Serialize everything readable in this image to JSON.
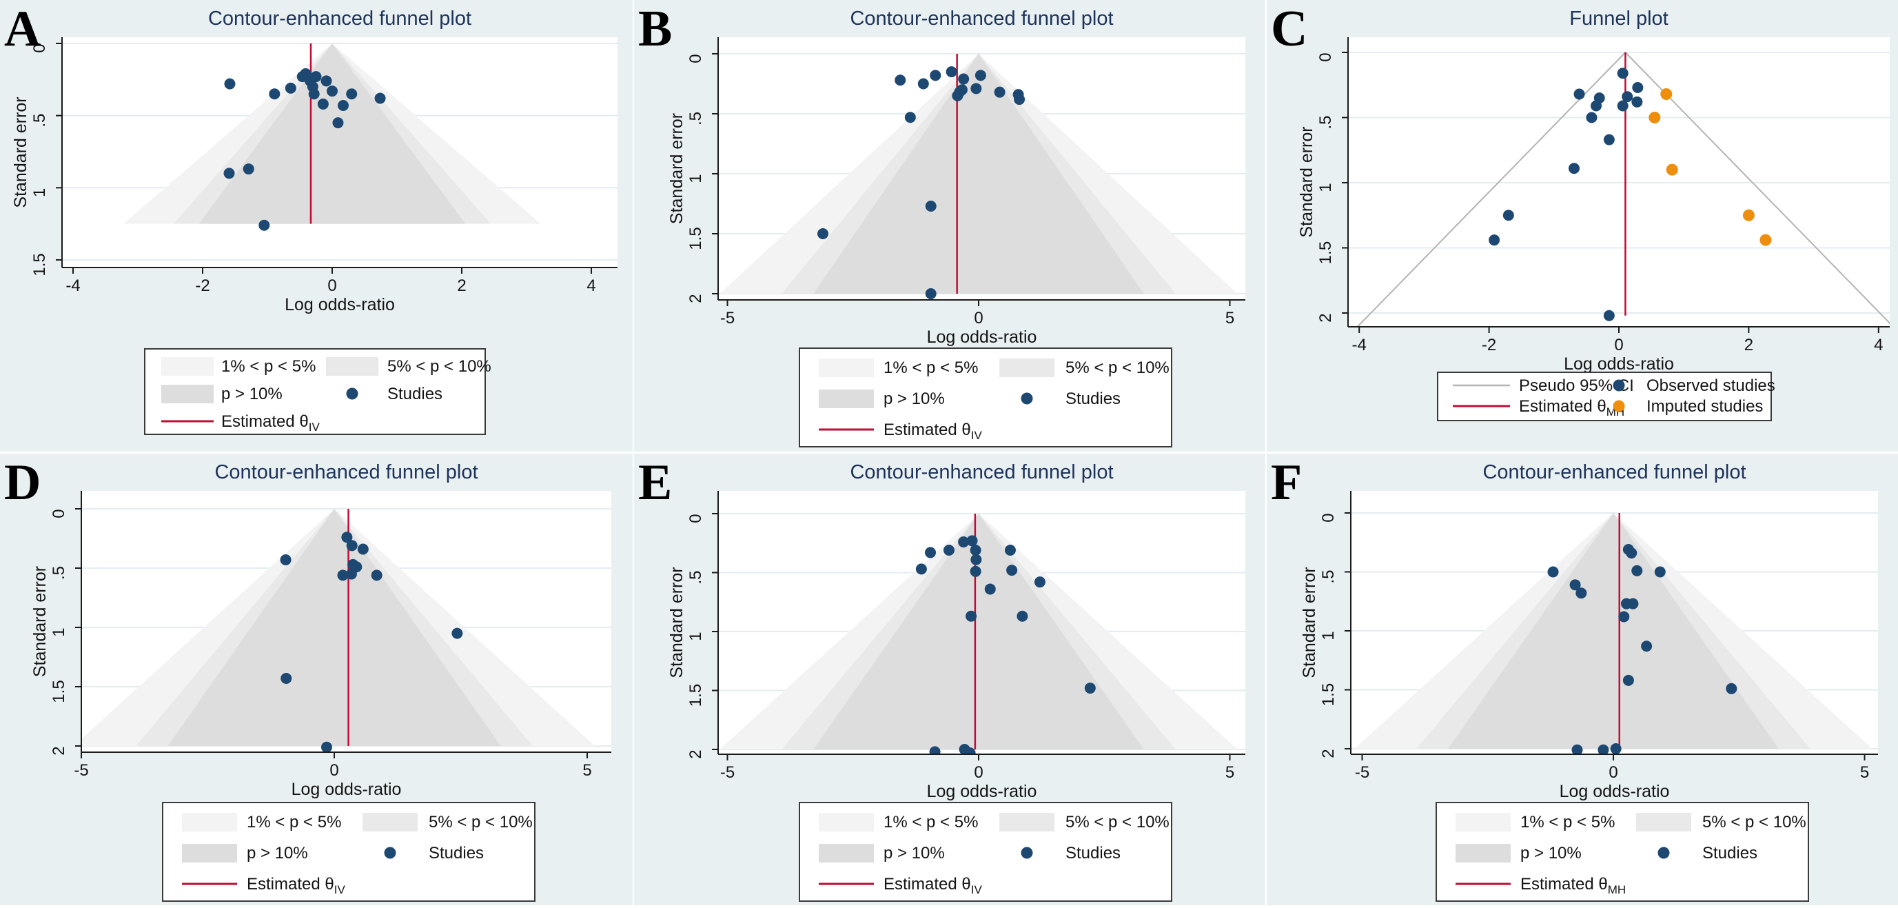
{
  "legend_labels": {
    "band_1_5": "1% < p < 5%",
    "band_5_10": "5% < p < 10%",
    "band_10": "p > 10%",
    "studies": "Studies",
    "estimated": "Estimated θ",
    "pseudo_ci": "Pseudo 95% CI",
    "observed": "Observed studies",
    "imputed": "Imputed studies"
  },
  "colors": {
    "page_background": "#e9f0f2",
    "plot_background": "#ffffff",
    "gridline": "#e3edf0",
    "band_outer_1_5": "#f3f3f3",
    "band_mid_5_10": "#e9e9e9",
    "band_inner_10": "#dddddd",
    "study_dot": "#1d4872",
    "imputed_dot": "#ef8e0c",
    "estimate_line": "#c00d35",
    "pseudo_ci_line": "#b3b3b3",
    "title_text": "#1e3359",
    "axis_text": "#141414"
  },
  "chart_data": [
    {
      "panel_label": "A",
      "type": "scatter",
      "title": "Contour-enhanced funnel plot",
      "xlabel": "Log odds-ratio",
      "ylabel": "Standard error",
      "legend_kind": "contour",
      "xtick_values": [
        -4,
        -2,
        0,
        2,
        4
      ],
      "xtick_labels": [
        "-4",
        "-2",
        "0",
        "2",
        "4"
      ],
      "ytick_values": [
        0,
        0.5,
        1,
        1.5
      ],
      "ytick_labels": [
        "0",
        ".5",
        "1",
        "1.5"
      ],
      "xlim": [
        -4.2,
        4.4
      ],
      "ylim": [
        0,
        1.55
      ],
      "funnel": {
        "center": 0,
        "bottom_se": 1.25,
        "z_p10": 1.645,
        "z_p05": 1.96,
        "z_p01": 2.576
      },
      "estimate_x": -0.33,
      "estimate_sub": "IV",
      "points": [
        [
          -1.58,
          0.28
        ],
        [
          -0.89,
          0.35
        ],
        [
          -0.64,
          0.31
        ],
        [
          -0.46,
          0.23
        ],
        [
          -0.41,
          0.21
        ],
        [
          -0.34,
          0.26
        ],
        [
          -0.3,
          0.3
        ],
        [
          -0.28,
          0.35
        ],
        [
          -0.25,
          0.23
        ],
        [
          -0.09,
          0.26
        ],
        [
          0.0,
          0.33
        ],
        [
          -0.14,
          0.42
        ],
        [
          0.17,
          0.43
        ],
        [
          0.3,
          0.35
        ],
        [
          0.74,
          0.38
        ],
        [
          0.09,
          0.55
        ],
        [
          -1.59,
          0.9
        ],
        [
          -1.29,
          0.87
        ],
        [
          -1.05,
          1.26
        ]
      ]
    },
    {
      "panel_label": "B",
      "type": "scatter",
      "title": "Contour-enhanced funnel plot",
      "xlabel": "Log odds-ratio",
      "ylabel": "Standard error",
      "legend_kind": "contour",
      "xtick_values": [
        -5,
        0,
        5
      ],
      "xtick_labels": [
        "-5",
        "0",
        "5"
      ],
      "ytick_values": [
        0,
        0.5,
        1,
        1.5,
        2
      ],
      "ytick_labels": [
        "0",
        ".5",
        "1",
        "1.5",
        "2"
      ],
      "xlim": [
        -5.2,
        5.3
      ],
      "ylim": [
        0,
        2.05
      ],
      "funnel": {
        "center": 0,
        "bottom_se": 2.0,
        "z_p10": 1.645,
        "z_p05": 1.96,
        "z_p01": 2.576
      },
      "estimate_x": -0.43,
      "estimate_sub": "IV",
      "points": [
        [
          -1.56,
          0.22
        ],
        [
          -1.1,
          0.25
        ],
        [
          -0.86,
          0.18
        ],
        [
          -0.54,
          0.15
        ],
        [
          -0.3,
          0.21
        ],
        [
          -0.33,
          0.3
        ],
        [
          -0.42,
          0.35
        ],
        [
          -0.38,
          0.32
        ],
        [
          0.04,
          0.18
        ],
        [
          -0.05,
          0.29
        ],
        [
          0.42,
          0.32
        ],
        [
          0.79,
          0.34
        ],
        [
          0.81,
          0.38
        ],
        [
          -1.36,
          0.53
        ],
        [
          -0.95,
          1.27
        ],
        [
          -3.1,
          1.5
        ],
        [
          -0.95,
          2.0
        ]
      ]
    },
    {
      "panel_label": "C",
      "type": "scatter",
      "title": "Funnel plot",
      "xlabel": "Log odds-ratio",
      "ylabel": "Standard error",
      "legend_kind": "trimfill",
      "xtick_values": [
        -4,
        -2,
        0,
        2,
        4
      ],
      "xtick_labels": [
        "-4",
        "-2",
        "0",
        "2",
        "4"
      ],
      "ytick_values": [
        0,
        0.5,
        1,
        1.5,
        2
      ],
      "ytick_labels": [
        "0",
        ".5",
        "1",
        "1.5",
        "2"
      ],
      "xlim": [
        -4.2,
        4.2
      ],
      "ylim": [
        0,
        2.1
      ],
      "pseudo_ci": {
        "center": 0.1,
        "z": 1.96
      },
      "estimate_x": 0.1,
      "estimate_sub": "MH",
      "observed": [
        [
          0.06,
          0.16
        ],
        [
          0.29,
          0.27
        ],
        [
          -0.61,
          0.32
        ],
        [
          -0.3,
          0.35
        ],
        [
          0.13,
          0.34
        ],
        [
          0.28,
          0.38
        ],
        [
          -0.35,
          0.41
        ],
        [
          0.06,
          0.41
        ],
        [
          -0.42,
          0.5
        ],
        [
          -0.15,
          0.67
        ],
        [
          -0.69,
          0.89
        ],
        [
          -1.7,
          1.25
        ],
        [
          -1.92,
          1.44
        ],
        [
          -0.15,
          2.02
        ]
      ],
      "imputed": [
        [
          0.73,
          0.32
        ],
        [
          0.55,
          0.5
        ],
        [
          0.82,
          0.9
        ],
        [
          2.0,
          1.25
        ],
        [
          2.26,
          1.44
        ]
      ]
    },
    {
      "panel_label": "D",
      "type": "scatter",
      "title": "Contour-enhanced funnel plot",
      "xlabel": "Log odds-ratio",
      "ylabel": "Standard error",
      "legend_kind": "contour",
      "xtick_values": [
        -5,
        0,
        5
      ],
      "xtick_labels": [
        "-5",
        "0",
        "5"
      ],
      "ytick_values": [
        0,
        0.5,
        1,
        1.5,
        2
      ],
      "ytick_labels": [
        "0",
        ".5",
        "1",
        "1.5",
        "2"
      ],
      "xlim": [
        -5.2,
        5.3
      ],
      "ylim": [
        0,
        2.05
      ],
      "funnel": {
        "center": 0,
        "bottom_se": 2.0,
        "z_p10": 1.645,
        "z_p05": 1.96,
        "z_p01": 2.576
      },
      "estimate_x": 0.28,
      "estimate_sub": "IV",
      "points": [
        [
          0.25,
          0.24
        ],
        [
          0.35,
          0.31
        ],
        [
          0.57,
          0.34
        ],
        [
          -0.96,
          0.43
        ],
        [
          0.37,
          0.47
        ],
        [
          0.44,
          0.49
        ],
        [
          0.17,
          0.56
        ],
        [
          0.34,
          0.55
        ],
        [
          0.84,
          0.56
        ],
        [
          2.43,
          1.05
        ],
        [
          -0.95,
          1.43
        ],
        [
          -0.15,
          2.01
        ]
      ]
    },
    {
      "panel_label": "E",
      "type": "scatter",
      "title": "Contour-enhanced funnel plot",
      "xlabel": "Log odds-ratio",
      "ylabel": "Standard error",
      "legend_kind": "contour",
      "xtick_values": [
        -5,
        0,
        5
      ],
      "xtick_labels": [
        "-5",
        "0",
        "5"
      ],
      "ytick_values": [
        0,
        0.5,
        1,
        1.5,
        2
      ],
      "ytick_labels": [
        "0",
        ".5",
        "1",
        "1.5",
        "2"
      ],
      "xlim": [
        -5.2,
        5.3
      ],
      "ylim": [
        0,
        2.05
      ],
      "funnel": {
        "center": 0,
        "bottom_se": 2.0,
        "z_p10": 1.645,
        "z_p05": 1.96,
        "z_p01": 2.576
      },
      "estimate_x": -0.07,
      "estimate_sub": "IV",
      "points": [
        [
          -0.3,
          0.24
        ],
        [
          -0.13,
          0.23
        ],
        [
          -0.96,
          0.33
        ],
        [
          -0.59,
          0.31
        ],
        [
          -0.06,
          0.31
        ],
        [
          0.63,
          0.31
        ],
        [
          -0.05,
          0.39
        ],
        [
          -1.14,
          0.47
        ],
        [
          -0.06,
          0.49
        ],
        [
          0.66,
          0.48
        ],
        [
          1.22,
          0.58
        ],
        [
          0.23,
          0.64
        ],
        [
          -0.15,
          0.87
        ],
        [
          0.87,
          0.87
        ],
        [
          2.22,
          1.48
        ],
        [
          -0.87,
          2.02
        ],
        [
          -0.28,
          2.0
        ],
        [
          -0.17,
          2.03
        ]
      ]
    },
    {
      "panel_label": "F",
      "type": "scatter",
      "title": "Contour-enhanced funnel plot",
      "xlabel": "Log odds-ratio",
      "ylabel": "Standard error",
      "legend_kind": "contour",
      "xtick_values": [
        -5,
        0,
        5
      ],
      "xtick_labels": [
        "-5",
        "0",
        "5"
      ],
      "ytick_values": [
        0,
        0.5,
        1,
        1.5,
        2
      ],
      "ytick_labels": [
        "0",
        ".5",
        "1",
        "1.5",
        "2"
      ],
      "xlim": [
        -5.2,
        5.3
      ],
      "ylim": [
        0,
        2.05
      ],
      "funnel": {
        "center": 0,
        "bottom_se": 2.0,
        "z_p10": 1.645,
        "z_p05": 1.96,
        "z_p01": 2.576
      },
      "estimate_x": 0.12,
      "estimate_sub": "MH",
      "points": [
        [
          0.3,
          0.31
        ],
        [
          0.36,
          0.34
        ],
        [
          0.47,
          0.49
        ],
        [
          0.93,
          0.5
        ],
        [
          -1.2,
          0.5
        ],
        [
          -0.76,
          0.61
        ],
        [
          -0.64,
          0.68
        ],
        [
          0.26,
          0.77
        ],
        [
          0.39,
          0.77
        ],
        [
          0.21,
          0.88
        ],
        [
          0.66,
          1.13
        ],
        [
          0.3,
          1.42
        ],
        [
          2.35,
          1.49
        ],
        [
          -0.72,
          2.01
        ],
        [
          -0.2,
          2.01
        ],
        [
          0.05,
          2.0
        ]
      ]
    }
  ]
}
